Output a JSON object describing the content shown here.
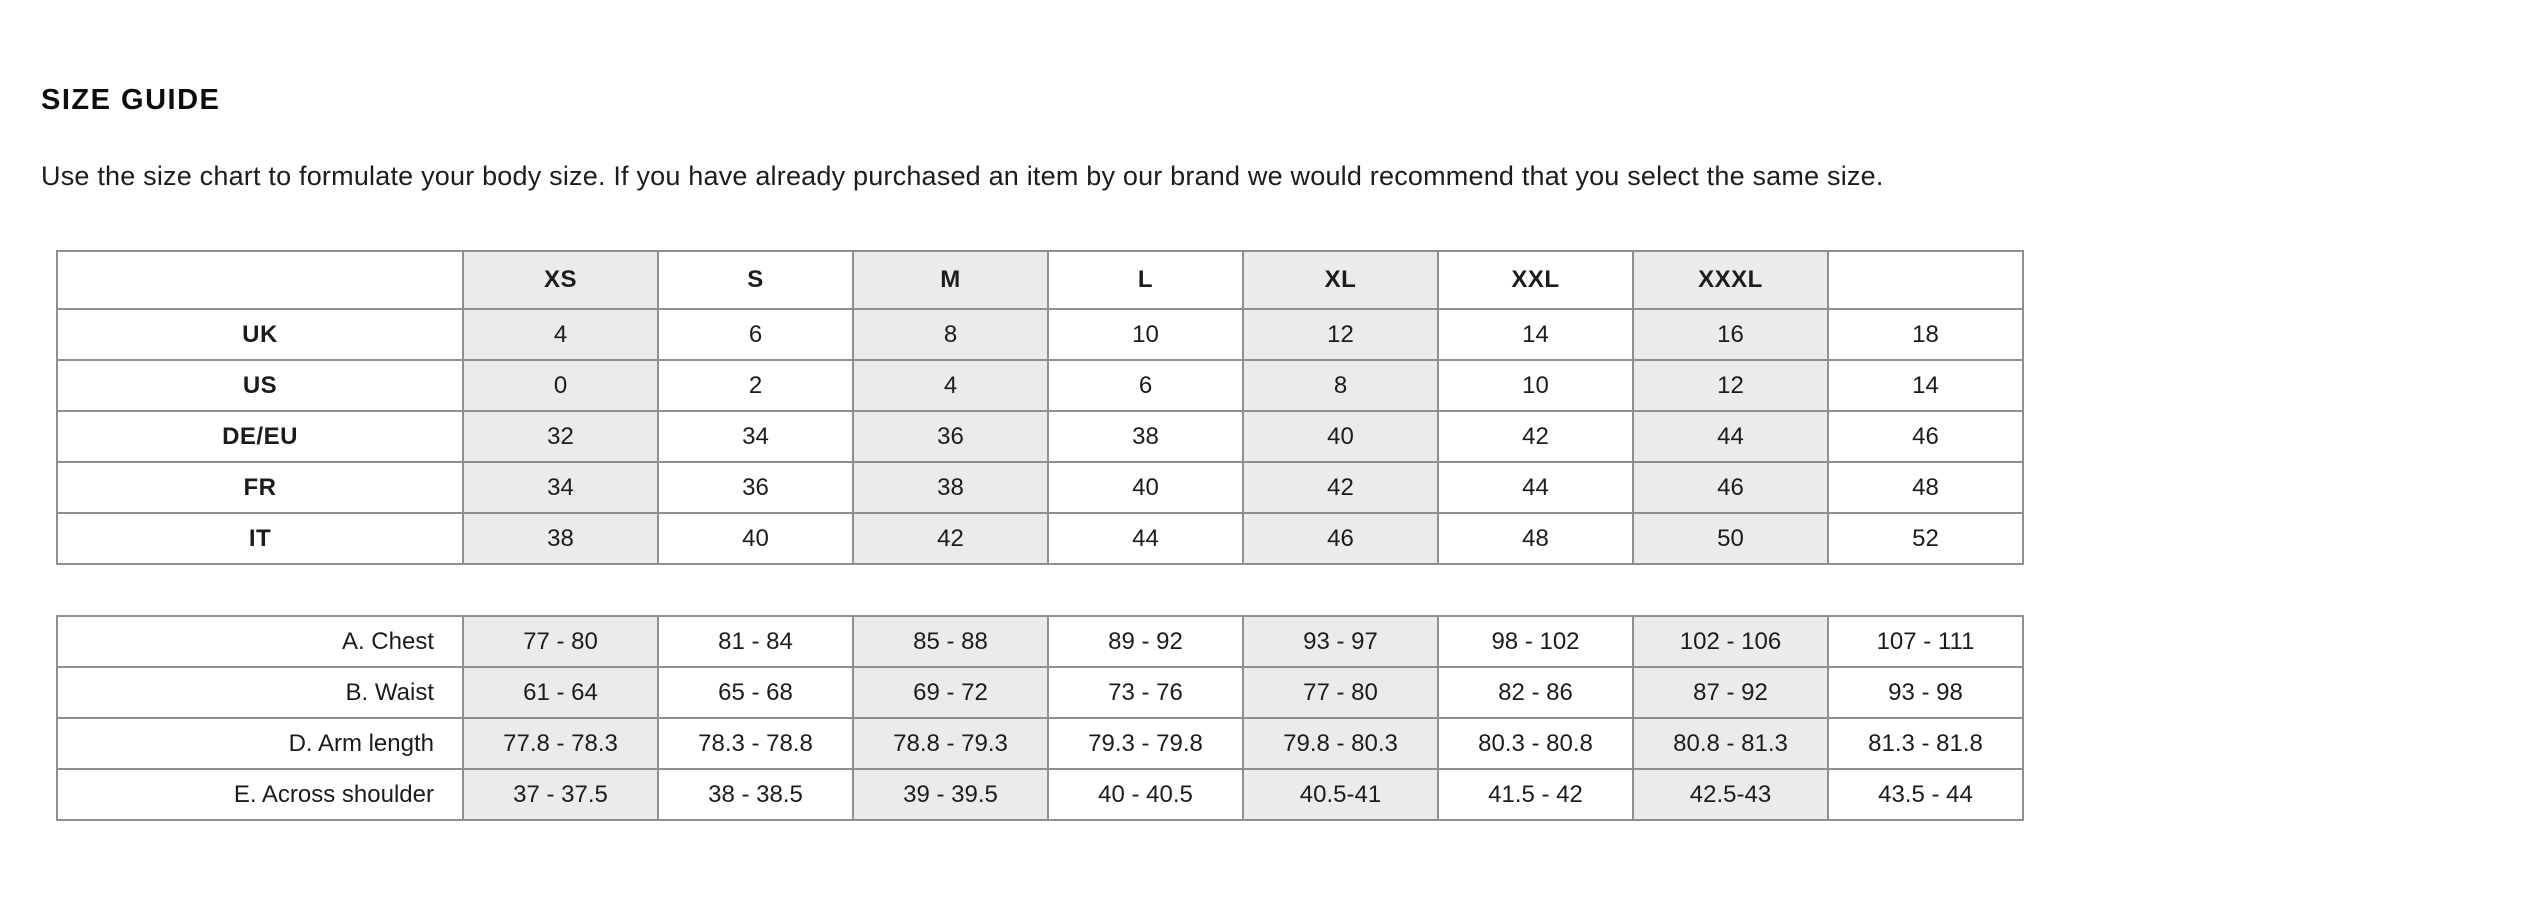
{
  "page": {
    "title": "SIZE GUIDE",
    "intro": "Use the size chart to formulate your body size. If you have already purchased an item by our brand we would recommend that you select the same size."
  },
  "colors": {
    "shaded_column": "#ebebeb",
    "table_border": "#8f8f8f",
    "text": "#1c1c1c",
    "background": "#ffffff"
  },
  "size_table": {
    "columns": [
      "",
      "XS",
      "S",
      "M",
      "L",
      "XL",
      "XXL",
      "XXXL",
      ""
    ],
    "rows": [
      {
        "label": "UK",
        "values": [
          "4",
          "6",
          "8",
          "10",
          "12",
          "14",
          "16",
          "18"
        ]
      },
      {
        "label": "US",
        "values": [
          "0",
          "2",
          "4",
          "6",
          "8",
          "10",
          "12",
          "14"
        ]
      },
      {
        "label": "DE/EU",
        "values": [
          "32",
          "34",
          "36",
          "38",
          "40",
          "42",
          "44",
          "46"
        ]
      },
      {
        "label": "FR",
        "values": [
          "34",
          "36",
          "38",
          "40",
          "42",
          "44",
          "46",
          "48"
        ]
      },
      {
        "label": "IT",
        "values": [
          "38",
          "40",
          "42",
          "44",
          "46",
          "48",
          "50",
          "52"
        ]
      }
    ]
  },
  "measurement_table": {
    "rows": [
      {
        "label": "A. Chest",
        "values": [
          "77 - 80",
          "81 - 84",
          "85 - 88",
          "89 - 92",
          "93 - 97",
          "98 - 102",
          "102 - 106",
          "107 - 111"
        ]
      },
      {
        "label": "B. Waist",
        "values": [
          "61 - 64",
          "65 - 68",
          "69 - 72",
          "73 - 76",
          "77 - 80",
          "82 - 86",
          "87 - 92",
          "93 - 98"
        ]
      },
      {
        "label": "D. Arm length",
        "values": [
          "77.8 - 78.3",
          "78.3 - 78.8",
          "78.8 - 79.3",
          "79.3 - 79.8",
          "79.8 - 80.3",
          "80.3 - 80.8",
          "80.8 - 81.3",
          "81.3 - 81.8"
        ]
      },
      {
        "label": "E. Across shoulder",
        "values": [
          "37 - 37.5",
          "38 - 38.5",
          "39 - 39.5",
          "40 - 40.5",
          "40.5-41",
          "41.5 - 42",
          "42.5-43",
          "43.5 - 44"
        ]
      }
    ]
  }
}
